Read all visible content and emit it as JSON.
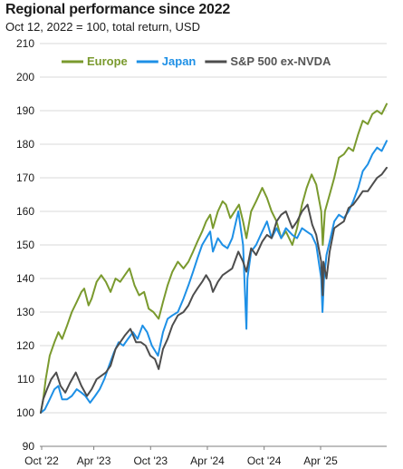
{
  "chart_data": {
    "type": "line",
    "title": "Regional performance since 2022",
    "subtitle": "Oct 12, 2022 = 100, total return, USD",
    "ylim": [
      90,
      210
    ],
    "yticks": [
      90,
      100,
      110,
      120,
      130,
      140,
      150,
      160,
      170,
      180,
      190,
      200,
      210
    ],
    "xlim": [
      "2022-10-12",
      "2025-10-31"
    ],
    "xticks": [
      {
        "date": "2022-10-01",
        "label": "Oct '22"
      },
      {
        "date": "2023-04-01",
        "label": "Apr '23"
      },
      {
        "date": "2023-10-01",
        "label": "Oct '23"
      },
      {
        "date": "2024-04-01",
        "label": "Apr '24"
      },
      {
        "date": "2024-10-01",
        "label": "Oct '24"
      },
      {
        "date": "2025-04-01",
        "label": "Apr '25"
      }
    ],
    "grid": true,
    "legend_position": "top-left",
    "series": [
      {
        "name": "Europe",
        "color": "#7a9a2e",
        "points": [
          [
            "2022-10-12",
            100
          ],
          [
            "2022-10-20",
            104
          ],
          [
            "2022-10-28",
            110
          ],
          [
            "2022-11-10",
            117
          ],
          [
            "2022-11-25",
            121
          ],
          [
            "2022-12-08",
            124
          ],
          [
            "2022-12-20",
            122
          ],
          [
            "2023-01-05",
            126
          ],
          [
            "2023-01-20",
            130
          ],
          [
            "2023-02-05",
            133
          ],
          [
            "2023-02-20",
            136
          ],
          [
            "2023-03-01",
            137
          ],
          [
            "2023-03-15",
            132
          ],
          [
            "2023-03-25",
            134
          ],
          [
            "2023-04-10",
            139
          ],
          [
            "2023-04-25",
            141
          ],
          [
            "2023-05-10",
            139
          ],
          [
            "2023-05-25",
            136
          ],
          [
            "2023-06-10",
            140
          ],
          [
            "2023-06-25",
            139
          ],
          [
            "2023-07-10",
            141
          ],
          [
            "2023-07-25",
            143
          ],
          [
            "2023-08-10",
            138
          ],
          [
            "2023-08-25",
            135
          ],
          [
            "2023-09-10",
            136
          ],
          [
            "2023-09-25",
            131
          ],
          [
            "2023-10-10",
            130
          ],
          [
            "2023-10-27",
            128
          ],
          [
            "2023-11-10",
            133
          ],
          [
            "2023-11-25",
            138
          ],
          [
            "2023-12-10",
            142
          ],
          [
            "2023-12-28",
            145
          ],
          [
            "2024-01-15",
            143
          ],
          [
            "2024-01-31",
            145
          ],
          [
            "2024-02-15",
            148
          ],
          [
            "2024-02-29",
            151
          ],
          [
            "2024-03-15",
            154
          ],
          [
            "2024-03-28",
            157
          ],
          [
            "2024-04-10",
            159
          ],
          [
            "2024-04-19",
            155
          ],
          [
            "2024-05-05",
            160
          ],
          [
            "2024-05-20",
            163
          ],
          [
            "2024-05-31",
            162
          ],
          [
            "2024-06-14",
            158
          ],
          [
            "2024-06-28",
            160
          ],
          [
            "2024-07-12",
            162
          ],
          [
            "2024-07-25",
            157
          ],
          [
            "2024-08-05",
            152
          ],
          [
            "2024-08-20",
            160
          ],
          [
            "2024-09-05",
            163
          ],
          [
            "2024-09-25",
            167
          ],
          [
            "2024-10-10",
            164
          ],
          [
            "2024-10-25",
            160
          ],
          [
            "2024-11-10",
            157
          ],
          [
            "2024-11-25",
            152
          ],
          [
            "2024-12-10",
            154
          ],
          [
            "2024-12-31",
            150
          ],
          [
            "2025-01-15",
            155
          ],
          [
            "2025-01-31",
            162
          ],
          [
            "2025-02-15",
            167
          ],
          [
            "2025-03-03",
            171
          ],
          [
            "2025-03-18",
            168
          ],
          [
            "2025-04-03",
            160
          ],
          [
            "2025-04-08",
            150
          ],
          [
            "2025-04-15",
            160
          ],
          [
            "2025-04-30",
            165
          ],
          [
            "2025-05-15",
            170
          ],
          [
            "2025-05-30",
            176
          ],
          [
            "2025-06-15",
            177
          ],
          [
            "2025-06-30",
            179
          ],
          [
            "2025-07-15",
            178
          ],
          [
            "2025-07-31",
            183
          ],
          [
            "2025-08-15",
            187
          ],
          [
            "2025-08-31",
            186
          ],
          [
            "2025-09-15",
            189
          ],
          [
            "2025-09-30",
            190
          ],
          [
            "2025-10-15",
            189
          ],
          [
            "2025-10-31",
            192
          ]
        ]
      },
      {
        "name": "Japan",
        "color": "#1e90e6",
        "points": [
          [
            "2022-10-12",
            100
          ],
          [
            "2022-10-25",
            101
          ],
          [
            "2022-11-10",
            104
          ],
          [
            "2022-11-25",
            107
          ],
          [
            "2022-12-08",
            108
          ],
          [
            "2022-12-20",
            104
          ],
          [
            "2023-01-05",
            104
          ],
          [
            "2023-01-20",
            105
          ],
          [
            "2023-02-05",
            107
          ],
          [
            "2023-02-20",
            106
          ],
          [
            "2023-03-05",
            105
          ],
          [
            "2023-03-20",
            103
          ],
          [
            "2023-04-05",
            105
          ],
          [
            "2023-04-20",
            107
          ],
          [
            "2023-05-05",
            110
          ],
          [
            "2023-05-20",
            114
          ],
          [
            "2023-06-05",
            118
          ],
          [
            "2023-06-20",
            121
          ],
          [
            "2023-07-05",
            120
          ],
          [
            "2023-07-20",
            122
          ],
          [
            "2023-08-05",
            124
          ],
          [
            "2023-08-20",
            122
          ],
          [
            "2023-09-05",
            126
          ],
          [
            "2023-09-20",
            124
          ],
          [
            "2023-10-05",
            120
          ],
          [
            "2023-10-25",
            117
          ],
          [
            "2023-11-10",
            124
          ],
          [
            "2023-11-25",
            128
          ],
          [
            "2023-12-10",
            129
          ],
          [
            "2023-12-28",
            130
          ],
          [
            "2024-01-15",
            134
          ],
          [
            "2024-01-31",
            138
          ],
          [
            "2024-02-15",
            142
          ],
          [
            "2024-02-29",
            146
          ],
          [
            "2024-03-15",
            150
          ],
          [
            "2024-03-28",
            152
          ],
          [
            "2024-04-10",
            154
          ],
          [
            "2024-04-19",
            148
          ],
          [
            "2024-05-05",
            152
          ],
          [
            "2024-05-20",
            150
          ],
          [
            "2024-06-05",
            149
          ],
          [
            "2024-06-20",
            152
          ],
          [
            "2024-07-10",
            160
          ],
          [
            "2024-07-25",
            150
          ],
          [
            "2024-08-05",
            125
          ],
          [
            "2024-08-08",
            140
          ],
          [
            "2024-08-20",
            148
          ],
          [
            "2024-09-05",
            150
          ],
          [
            "2024-09-25",
            154
          ],
          [
            "2024-10-10",
            157
          ],
          [
            "2024-10-25",
            152
          ],
          [
            "2024-11-10",
            155
          ],
          [
            "2024-11-25",
            152
          ],
          [
            "2024-12-10",
            155
          ],
          [
            "2024-12-31",
            153
          ],
          [
            "2025-01-15",
            152
          ],
          [
            "2025-01-31",
            155
          ],
          [
            "2025-02-15",
            154
          ],
          [
            "2025-03-03",
            153
          ],
          [
            "2025-03-18",
            150
          ],
          [
            "2025-04-03",
            140
          ],
          [
            "2025-04-07",
            130
          ],
          [
            "2025-04-12",
            140
          ],
          [
            "2025-04-20",
            147
          ],
          [
            "2025-04-30",
            151
          ],
          [
            "2025-05-15",
            157
          ],
          [
            "2025-05-30",
            159
          ],
          [
            "2025-06-15",
            158
          ],
          [
            "2025-06-30",
            160
          ],
          [
            "2025-07-15",
            163
          ],
          [
            "2025-07-31",
            167
          ],
          [
            "2025-08-15",
            172
          ],
          [
            "2025-08-31",
            174
          ],
          [
            "2025-09-15",
            177
          ],
          [
            "2025-09-30",
            179
          ],
          [
            "2025-10-15",
            178
          ],
          [
            "2025-10-31",
            181
          ]
        ]
      },
      {
        "name": "S&P 500 ex-NVDA",
        "color": "#4d4d4d",
        "points": [
          [
            "2022-10-12",
            100
          ],
          [
            "2022-10-20",
            104
          ],
          [
            "2022-11-01",
            107
          ],
          [
            "2022-11-15",
            110
          ],
          [
            "2022-12-01",
            112
          ],
          [
            "2022-12-15",
            108
          ],
          [
            "2022-12-30",
            106
          ],
          [
            "2023-01-15",
            109
          ],
          [
            "2023-02-02",
            112
          ],
          [
            "2023-02-20",
            108
          ],
          [
            "2023-03-10",
            105
          ],
          [
            "2023-03-25",
            107
          ],
          [
            "2023-04-10",
            110
          ],
          [
            "2023-04-25",
            111
          ],
          [
            "2023-05-10",
            112
          ],
          [
            "2023-05-25",
            114
          ],
          [
            "2023-06-10",
            119
          ],
          [
            "2023-06-25",
            121
          ],
          [
            "2023-07-10",
            123
          ],
          [
            "2023-07-28",
            125
          ],
          [
            "2023-08-15",
            121
          ],
          [
            "2023-08-31",
            121
          ],
          [
            "2023-09-15",
            120
          ],
          [
            "2023-09-30",
            117
          ],
          [
            "2023-10-15",
            116
          ],
          [
            "2023-10-27",
            113
          ],
          [
            "2023-11-10",
            119
          ],
          [
            "2023-11-25",
            122
          ],
          [
            "2023-12-10",
            126
          ],
          [
            "2023-12-28",
            129
          ],
          [
            "2024-01-15",
            130
          ],
          [
            "2024-01-31",
            132
          ],
          [
            "2024-02-15",
            135
          ],
          [
            "2024-02-29",
            137
          ],
          [
            "2024-03-15",
            139
          ],
          [
            "2024-03-28",
            141
          ],
          [
            "2024-04-10",
            139
          ],
          [
            "2024-04-19",
            136
          ],
          [
            "2024-05-05",
            139
          ],
          [
            "2024-05-20",
            141
          ],
          [
            "2024-06-05",
            142
          ],
          [
            "2024-06-20",
            143
          ],
          [
            "2024-07-10",
            148
          ],
          [
            "2024-07-25",
            145
          ],
          [
            "2024-08-05",
            142
          ],
          [
            "2024-08-20",
            149
          ],
          [
            "2024-09-05",
            147
          ],
          [
            "2024-09-25",
            151
          ],
          [
            "2024-10-10",
            153
          ],
          [
            "2024-10-25",
            152
          ],
          [
            "2024-11-10",
            157
          ],
          [
            "2024-11-25",
            159
          ],
          [
            "2024-12-10",
            160
          ],
          [
            "2024-12-31",
            155
          ],
          [
            "2025-01-15",
            157
          ],
          [
            "2025-01-31",
            160
          ],
          [
            "2025-02-18",
            162
          ],
          [
            "2025-03-05",
            156
          ],
          [
            "2025-03-18",
            153
          ],
          [
            "2025-04-03",
            145
          ],
          [
            "2025-04-08",
            135
          ],
          [
            "2025-04-10",
            145
          ],
          [
            "2025-04-20",
            140
          ],
          [
            "2025-04-30",
            148
          ],
          [
            "2025-05-15",
            155
          ],
          [
            "2025-05-30",
            156
          ],
          [
            "2025-06-15",
            157
          ],
          [
            "2025-06-30",
            161
          ],
          [
            "2025-07-15",
            162
          ],
          [
            "2025-07-31",
            164
          ],
          [
            "2025-08-15",
            166
          ],
          [
            "2025-08-31",
            166
          ],
          [
            "2025-09-15",
            168
          ],
          [
            "2025-09-30",
            170
          ],
          [
            "2025-10-15",
            171
          ],
          [
            "2025-10-31",
            173
          ]
        ]
      }
    ]
  }
}
